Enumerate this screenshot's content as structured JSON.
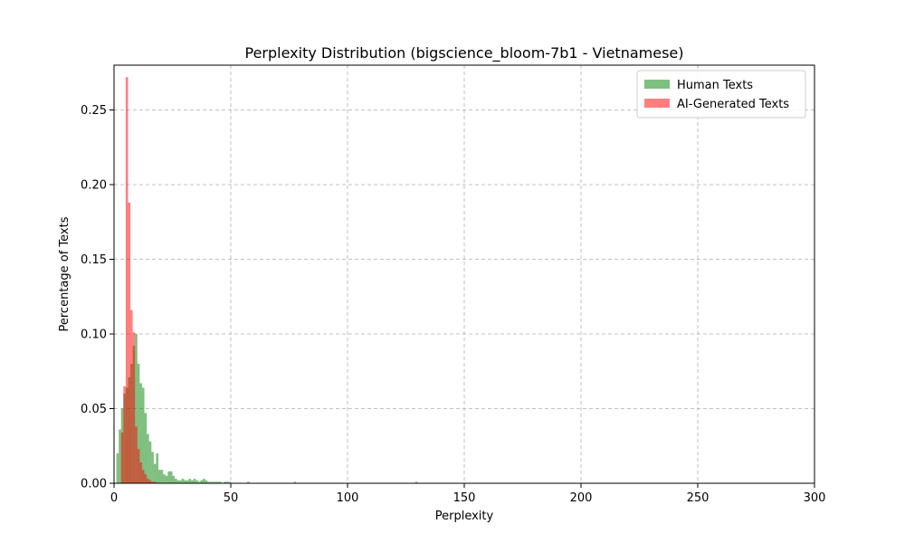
{
  "chart_data": {
    "type": "bar",
    "title": "Perplexity Distribution (bigscience_bloom-7b1 - Vietnamese)",
    "xlabel": "Perplexity",
    "ylabel": "Percentage of Texts",
    "xlim": [
      0,
      300
    ],
    "ylim": [
      0,
      0.28
    ],
    "xticks": [
      "0",
      "50",
      "100",
      "150",
      "200",
      "250",
      "300"
    ],
    "yticks": [
      "0.00",
      "0.05",
      "0.10",
      "0.15",
      "0.20",
      "0.25"
    ],
    "grid": true,
    "legend_position": "top-right",
    "series": [
      {
        "name": "Human Texts",
        "color": "#008000",
        "opacity": 0.5,
        "bins": [
          [
            1,
            0.02
          ],
          [
            2,
            0.036
          ],
          [
            3,
            0.05
          ],
          [
            4,
            0.06
          ],
          [
            5,
            0.064
          ],
          [
            6,
            0.071
          ],
          [
            7,
            0.08
          ],
          [
            8,
            0.092
          ],
          [
            9,
            0.1
          ],
          [
            10,
            0.08
          ],
          [
            11,
            0.067
          ],
          [
            12,
            0.064
          ],
          [
            13,
            0.047
          ],
          [
            14,
            0.033
          ],
          [
            15,
            0.028
          ],
          [
            16,
            0.021
          ],
          [
            17,
            0.013
          ],
          [
            18,
            0.02
          ],
          [
            19,
            0.009
          ],
          [
            20,
            0.009
          ],
          [
            21,
            0.006
          ],
          [
            22,
            0.005
          ],
          [
            23,
            0.008
          ],
          [
            24,
            0.008
          ],
          [
            25,
            0.005
          ],
          [
            26,
            0.003
          ],
          [
            27,
            0.002
          ],
          [
            28,
            0.002
          ],
          [
            29,
            0.003
          ],
          [
            30,
            0.002
          ],
          [
            31,
            0.002
          ],
          [
            32,
            0.003
          ],
          [
            33,
            0.002
          ],
          [
            34,
            0.003
          ],
          [
            35,
            0.002
          ],
          [
            36,
            0.001
          ],
          [
            37,
            0.002
          ],
          [
            38,
            0.003
          ],
          [
            39,
            0.002
          ],
          [
            40,
            0.001
          ],
          [
            41,
            0.001
          ],
          [
            42,
            0.001
          ],
          [
            43,
            0.001
          ],
          [
            44,
            0.001
          ],
          [
            45,
            0.001
          ],
          [
            47,
            0.001
          ],
          [
            48,
            0.001
          ],
          [
            49,
            0.001
          ],
          [
            57,
            0.001
          ],
          [
            77,
            0.001
          ],
          [
            129,
            0.001
          ]
        ]
      },
      {
        "name": "AI-Generated Texts",
        "color": "#ff0000",
        "opacity": 0.5,
        "bins": [
          [
            3,
            0.034
          ],
          [
            4,
            0.065
          ],
          [
            5,
            0.272
          ],
          [
            6,
            0.188
          ],
          [
            7,
            0.116
          ],
          [
            8,
            0.101
          ],
          [
            9,
            0.038
          ],
          [
            10,
            0.023
          ],
          [
            11,
            0.014
          ],
          [
            12,
            0.009
          ],
          [
            13,
            0.006
          ],
          [
            14,
            0.003
          ],
          [
            15,
            0.002
          ],
          [
            16,
            0.001
          ],
          [
            17,
            0.001
          ]
        ]
      }
    ]
  }
}
